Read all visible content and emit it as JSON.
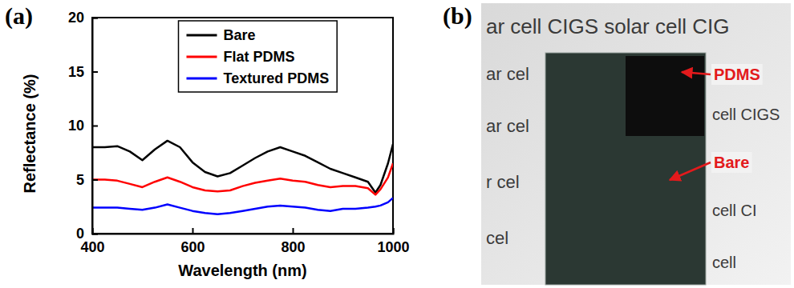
{
  "chart_data": {
    "type": "line",
    "xlabel": "Wavelength (nm)",
    "ylabel": "Reflectance (%)",
    "x": [
      400,
      425,
      450,
      475,
      500,
      525,
      550,
      575,
      600,
      625,
      650,
      675,
      700,
      725,
      750,
      775,
      800,
      825,
      850,
      875,
      900,
      925,
      950,
      965,
      975,
      990,
      1000
    ],
    "series": [
      {
        "name": "Bare",
        "color": "#000000",
        "values": [
          8.0,
          8.0,
          8.1,
          7.6,
          6.8,
          7.8,
          8.6,
          8.0,
          6.6,
          5.7,
          5.3,
          5.6,
          6.3,
          7.0,
          7.6,
          8.0,
          7.6,
          7.2,
          6.6,
          6.0,
          5.6,
          5.2,
          4.8,
          3.8,
          4.5,
          6.5,
          8.3
        ]
      },
      {
        "name": "Flat PDMS",
        "color": "#ff0000",
        "values": [
          5.0,
          5.0,
          4.9,
          4.6,
          4.3,
          4.8,
          5.2,
          4.8,
          4.3,
          4.0,
          3.9,
          4.0,
          4.4,
          4.7,
          4.9,
          5.1,
          4.9,
          4.8,
          4.5,
          4.3,
          4.4,
          4.4,
          4.2,
          3.6,
          4.1,
          5.2,
          6.5
        ]
      },
      {
        "name": "Textured PDMS",
        "color": "#0000ff",
        "values": [
          2.4,
          2.4,
          2.4,
          2.3,
          2.2,
          2.4,
          2.7,
          2.4,
          2.1,
          1.9,
          1.8,
          1.9,
          2.1,
          2.3,
          2.5,
          2.6,
          2.5,
          2.4,
          2.2,
          2.1,
          2.3,
          2.3,
          2.4,
          2.5,
          2.6,
          2.9,
          3.3
        ]
      }
    ],
    "xlim": [
      400,
      1000
    ],
    "xticks": [
      400,
      600,
      800,
      1000
    ],
    "ylim": [
      0,
      20
    ],
    "yticks": [
      0,
      5,
      10,
      15,
      20
    ],
    "legend": "upper center"
  },
  "panel_labels": [
    "(a)",
    "(b)"
  ],
  "photo": {
    "background_text": [
      "ar cell CIGS solar cell CIG",
      "ar cel",
      "ar cel",
      "r cel",
      "cel",
      "cell CIGS",
      "cell CI",
      "cell"
    ],
    "labels": [
      "PDMS",
      "Bare"
    ]
  }
}
